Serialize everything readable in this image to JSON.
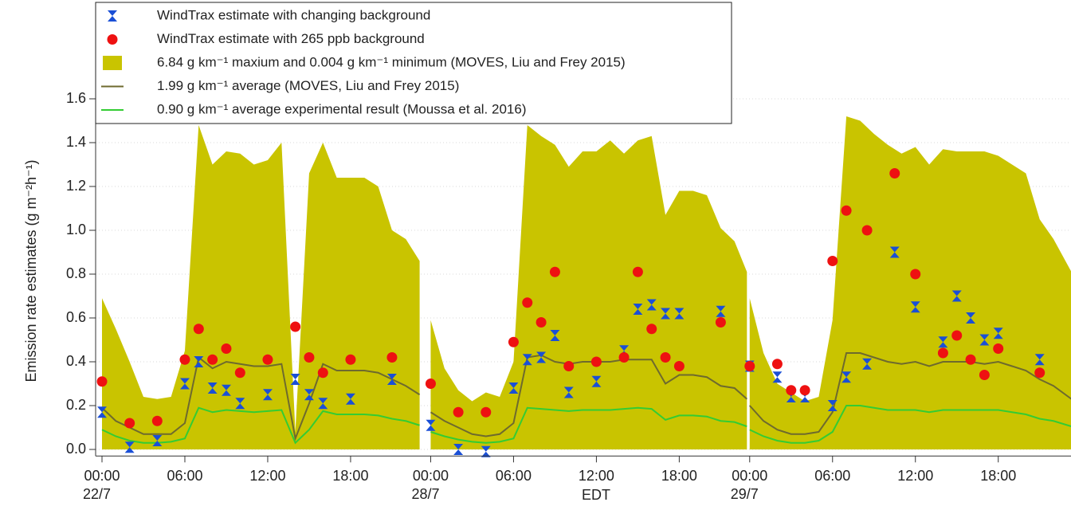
{
  "chart_data": {
    "type": "line",
    "ylabel": "Emission rate estimates (g m⁻²h⁻¹)",
    "xlabel": "EDT",
    "ylim": [
      -0.03,
      1.62
    ],
    "yticks": [
      {
        "value": 0,
        "label": "0.0"
      },
      0.2,
      0.4,
      0.6,
      0.8,
      {
        "value": 1,
        "label": "1.0"
      },
      1.2,
      1.4,
      1.6
    ],
    "grid": true,
    "legend": "upper left",
    "panels": [
      {
        "date": "22/7",
        "xlim": [
          0,
          23.8
        ],
        "xticks": [
          {
            "value": 0,
            "label": "00:00"
          },
          {
            "value": 6,
            "label": "06:00"
          },
          {
            "value": 12,
            "label": "12:00"
          },
          {
            "value": 18,
            "label": "18:00"
          }
        ],
        "x": [
          0,
          1,
          2,
          3,
          4,
          5,
          6,
          7,
          8,
          9,
          10,
          11,
          12,
          13,
          14,
          15,
          16,
          17,
          18,
          19,
          20,
          21,
          22,
          23
        ]
      },
      {
        "date": "28/7",
        "xlim": [
          0,
          23.1
        ],
        "xticks": [
          {
            "value": 0,
            "label": "00:00"
          },
          {
            "value": 6,
            "label": "06:00"
          },
          {
            "value": 12,
            "label": "12:00"
          },
          {
            "value": 18,
            "label": "18:00"
          }
        ],
        "x": [
          0,
          1,
          2,
          3,
          4,
          5,
          6,
          7,
          8,
          9,
          10,
          11,
          12,
          13,
          14,
          15,
          16,
          17,
          18,
          19,
          20,
          21,
          22,
          22.9
        ]
      },
      {
        "date": "29/7",
        "xlim": [
          0,
          23.3
        ],
        "xticks": [
          {
            "value": 0,
            "label": "00:00"
          },
          {
            "value": 6,
            "label": "06:00"
          },
          {
            "value": 12,
            "label": "12:00"
          },
          {
            "value": 18,
            "label": "18:00"
          }
        ],
        "x": [
          0,
          1,
          2,
          3,
          4,
          5,
          6,
          7,
          8,
          9,
          10,
          11,
          12,
          13,
          14,
          15,
          16,
          17,
          18,
          19,
          20,
          21,
          22,
          23.3
        ]
      }
    ],
    "series": [
      {
        "name": "WindTrax estimate with changing background",
        "color": "#1a4fd6",
        "marker": "hourglass",
        "panels": [
          {
            "x": [
              0,
              2,
              4,
              6,
              7,
              8,
              9,
              10,
              12,
              14,
              15,
              16,
              18,
              21
            ],
            "values": [
              0.17,
              0.01,
              0.04,
              0.3,
              0.4,
              0.28,
              0.27,
              0.21,
              0.25,
              0.32,
              0.25,
              0.21,
              0.23,
              0.32
            ]
          },
          {
            "x": [
              0,
              2,
              4,
              6,
              7,
              8,
              9,
              10,
              12,
              14,
              15,
              16,
              17,
              18,
              21
            ],
            "values": [
              0.11,
              0,
              -0.01,
              0.28,
              0.41,
              0.42,
              0.52,
              0.26,
              0.31,
              0.45,
              0.64,
              0.66,
              0.62,
              0.62,
              0.63
            ]
          },
          {
            "x": [
              0,
              2,
              3,
              4,
              6,
              7,
              8.5,
              10.5,
              12,
              14,
              15,
              16,
              17,
              18,
              21
            ],
            "values": [
              0.38,
              0.33,
              0.24,
              0.24,
              0.2,
              0.33,
              0.39,
              0.9,
              0.65,
              0.49,
              0.7,
              0.6,
              0.5,
              0.53,
              0.41
            ]
          }
        ]
      },
      {
        "name": "WindTrax estimate with 265 ppb background",
        "color": "#ee1111",
        "marker": "circle",
        "panels": [
          {
            "x": [
              0,
              2,
              4,
              6,
              7,
              8,
              9,
              10,
              12,
              14,
              15,
              16,
              18,
              21
            ],
            "values": [
              0.31,
              0.12,
              0.13,
              0.41,
              0.55,
              0.41,
              0.46,
              0.35,
              0.41,
              0.56,
              0.42,
              0.35,
              0.41,
              0.42
            ]
          },
          {
            "x": [
              0,
              2,
              4,
              6,
              7,
              8,
              9,
              10,
              12,
              14,
              15,
              16,
              17,
              18,
              21
            ],
            "values": [
              0.3,
              0.17,
              0.17,
              0.49,
              0.67,
              0.58,
              0.81,
              0.38,
              0.4,
              0.42,
              0.81,
              0.55,
              0.42,
              0.38,
              0.58
            ]
          },
          {
            "x": [
              0,
              2,
              3,
              4,
              6,
              7,
              8.5,
              10.5,
              12,
              14,
              15,
              16,
              17,
              18,
              21
            ],
            "values": [
              0.38,
              0.39,
              0.27,
              0.27,
              0.86,
              1.09,
              1.0,
              1.26,
              0.8,
              0.44,
              0.52,
              0.41,
              0.34,
              0.46,
              0.35
            ]
          }
        ]
      },
      {
        "name": "6.84 g km⁻¹  maxium and 0.004 g km⁻¹  minimum (MOVES, Liu and Frey 2015)",
        "color": "#c9c400",
        "style": "band",
        "panels": [
          {
            "values": [
              0.69,
              0.55,
              0.4,
              0.24,
              0.23,
              0.24,
              0.45,
              1.48,
              1.3,
              1.36,
              1.35,
              1.3,
              1.32,
              1.4,
              0.08,
              1.26,
              1.4,
              1.24,
              1.24,
              1.24,
              1.2,
              1.0,
              0.96,
              0.86
            ],
            "lower": [
              0,
              0,
              0,
              0,
              0,
              0,
              0,
              0,
              0,
              0,
              0,
              0,
              0,
              0,
              0,
              0,
              0,
              0,
              0,
              0,
              0,
              0,
              0,
              0
            ]
          },
          {
            "values": [
              0.59,
              0.37,
              0.27,
              0.22,
              0.26,
              0.24,
              0.4,
              1.48,
              1.43,
              1.39,
              1.29,
              1.36,
              1.36,
              1.41,
              1.35,
              1.41,
              1.43,
              1.07,
              1.18,
              1.18,
              1.16,
              1.01,
              0.95,
              0.81
            ],
            "lower": [
              0,
              0,
              0,
              0,
              0,
              0,
              0,
              0,
              0,
              0,
              0,
              0,
              0,
              0,
              0,
              0,
              0,
              0,
              0,
              0,
              0,
              0,
              0,
              0
            ]
          },
          {
            "values": [
              0.69,
              0.44,
              0.3,
              0.26,
              0.22,
              0.24,
              0.59,
              1.52,
              1.5,
              1.44,
              1.39,
              1.35,
              1.38,
              1.3,
              1.37,
              1.36,
              1.36,
              1.36,
              1.34,
              1.3,
              1.26,
              1.05,
              0.96,
              0.81
            ],
            "lower": [
              0,
              0,
              0,
              0,
              0,
              0,
              0,
              0,
              0,
              0,
              0,
              0,
              0,
              0,
              0,
              0,
              0,
              0,
              0,
              0,
              0,
              0,
              0,
              0
            ]
          }
        ]
      },
      {
        "name": "1.99 g km⁻¹  average (MOVES, Liu and Frey 2015)",
        "color": "#6e6a2e",
        "style": "line",
        "panels": [
          {
            "values": [
              0.19,
              0.13,
              0.1,
              0.07,
              0.07,
              0.07,
              0.12,
              0.42,
              0.37,
              0.4,
              0.39,
              0.38,
              0.38,
              0.39,
              0.05,
              0.21,
              0.39,
              0.36,
              0.36,
              0.36,
              0.35,
              0.32,
              0.29,
              0.25
            ]
          },
          {
            "values": [
              0.17,
              0.13,
              0.1,
              0.07,
              0.06,
              0.07,
              0.12,
              0.42,
              0.43,
              0.4,
              0.39,
              0.4,
              0.4,
              0.4,
              0.41,
              0.41,
              0.41,
              0.3,
              0.34,
              0.34,
              0.33,
              0.29,
              0.28,
              0.23
            ]
          },
          {
            "values": [
              0.2,
              0.13,
              0.09,
              0.07,
              0.07,
              0.08,
              0.17,
              0.44,
              0.44,
              0.42,
              0.4,
              0.39,
              0.4,
              0.38,
              0.4,
              0.4,
              0.4,
              0.39,
              0.4,
              0.38,
              0.36,
              0.32,
              0.29,
              0.23
            ]
          }
        ]
      },
      {
        "name": "0.90 g km⁻¹  average experimental result (Moussa et al. 2016)",
        "color": "#33cc33",
        "style": "line",
        "panels": [
          {
            "values": [
              0.09,
              0.06,
              0.04,
              0.03,
              0.03,
              0.035,
              0.05,
              0.19,
              0.17,
              0.18,
              0.175,
              0.17,
              0.175,
              0.18,
              0.03,
              0.09,
              0.175,
              0.16,
              0.16,
              0.16,
              0.155,
              0.14,
              0.13,
              0.11
            ]
          },
          {
            "values": [
              0.08,
              0.06,
              0.045,
              0.035,
              0.03,
              0.035,
              0.05,
              0.19,
              0.185,
              0.18,
              0.175,
              0.18,
              0.18,
              0.18,
              0.185,
              0.19,
              0.185,
              0.135,
              0.155,
              0.155,
              0.15,
              0.13,
              0.125,
              0.105
            ]
          },
          {
            "values": [
              0.09,
              0.06,
              0.04,
              0.03,
              0.03,
              0.04,
              0.08,
              0.2,
              0.2,
              0.19,
              0.18,
              0.18,
              0.18,
              0.17,
              0.18,
              0.18,
              0.18,
              0.18,
              0.18,
              0.17,
              0.16,
              0.14,
              0.13,
              0.105
            ]
          }
        ]
      }
    ]
  }
}
